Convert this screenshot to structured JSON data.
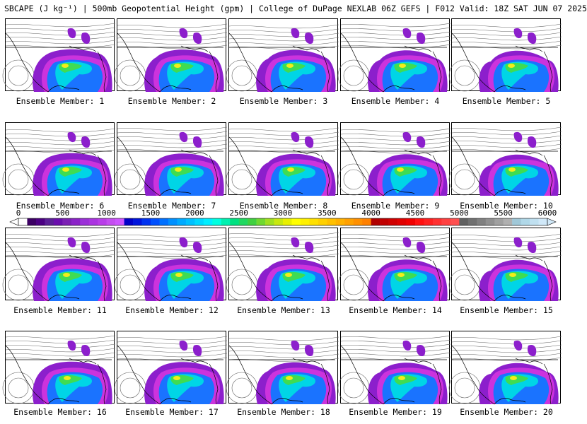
{
  "header": {
    "title": "SBCAPE (J kg⁻¹) | 500mb Geopotential Height (gpm) | College of DuPage NEXLAB 06Z GEFS | F012 Valid: 18Z SAT JUN 07 2025"
  },
  "panels": [
    {
      "label": "Ensemble Member: 1"
    },
    {
      "label": "Ensemble Member: 2"
    },
    {
      "label": "Ensemble Member: 3"
    },
    {
      "label": "Ensemble Member: 4"
    },
    {
      "label": "Ensemble Member: 5"
    },
    {
      "label": "Ensemble Member: 6"
    },
    {
      "label": "Ensemble Member: 7"
    },
    {
      "label": "Ensemble Member: 8"
    },
    {
      "label": "Ensemble Member: 9"
    },
    {
      "label": "Ensemble Member: 10"
    },
    {
      "label": "Ensemble Member: 11"
    },
    {
      "label": "Ensemble Member: 12"
    },
    {
      "label": "Ensemble Member: 13"
    },
    {
      "label": "Ensemble Member: 14"
    },
    {
      "label": "Ensemble Member: 15"
    },
    {
      "label": "Ensemble Member: 16"
    },
    {
      "label": "Ensemble Member: 17"
    },
    {
      "label": "Ensemble Member: 18"
    },
    {
      "label": "Ensemble Member: 19"
    },
    {
      "label": "Ensemble Member: 20"
    }
  ],
  "colorbar": {
    "tick_labels": [
      "0",
      "500",
      "1000",
      "1500",
      "2000",
      "2500",
      "3000",
      "3500",
      "4000",
      "4500",
      "5000",
      "5500",
      "6000"
    ],
    "colors": [
      "#ffffff",
      "#3c0064",
      "#4b0082",
      "#5a1e96",
      "#6a0dad",
      "#7b1fb4",
      "#8b22c8",
      "#9b30d8",
      "#aa33e0",
      "#b83de8",
      "#c44ef0",
      "#cc55ff",
      "#0000c8",
      "#0014dc",
      "#0032f0",
      "#0050ff",
      "#0070ff",
      "#0090ff",
      "#00aaff",
      "#00c0ff",
      "#00d8ff",
      "#00eeff",
      "#00ffe0",
      "#00f0b0",
      "#00e080",
      "#20d860",
      "#40d040",
      "#70d830",
      "#a0e020",
      "#c8e810",
      "#e8f000",
      "#ffff00",
      "#fff000",
      "#ffe000",
      "#ffd000",
      "#ffc000",
      "#ffb000",
      "#ffa000",
      "#ff9000",
      "#ff8000",
      "#b00000",
      "#c00000",
      "#d00000",
      "#e00000",
      "#f00000",
      "#ff1010",
      "#ff2020",
      "#ff3030",
      "#ff4040",
      "#ff5050",
      "#606060",
      "#707070",
      "#808080",
      "#909090",
      "#a0a0a0",
      "#b0b0b0",
      "#a0c8d8",
      "#b0d8e8",
      "#c0e0f0",
      "#d0e8f8"
    ]
  }
}
